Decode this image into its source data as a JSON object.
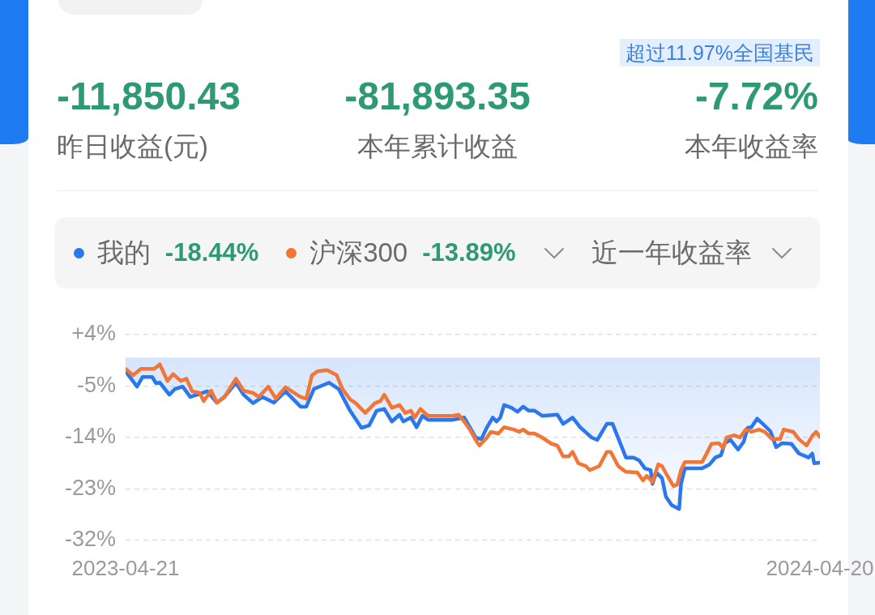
{
  "chart_data": [
    {
      "type": "other",
      "annotations": [
        "超过11.97%全国基民",
        "-11,850.43",
        "昨日收益(元)",
        "-81,893.35",
        "本年累计收益",
        "-7.72%",
        "本年收益率"
      ]
    },
    {
      "type": "line",
      "legend": "top",
      "grid": "y",
      "marker": "none",
      "annotations": [
        "-18.44%",
        "-13.89%",
        "近一年收益率"
      ],
      "xlim": [
        "2023-04-21",
        "2024-04-20"
      ],
      "xticks": [
        "2023-04-21",
        "2024-04-20"
      ],
      "ylim": [
        -32,
        4
      ],
      "yticks": [
        {
          "value": 4,
          "label": "+4%"
        },
        {
          "value": -5,
          "label": "-5%"
        },
        {
          "value": -14,
          "label": "-14%"
        },
        {
          "value": -23,
          "label": "-23%"
        },
        {
          "value": -32,
          "label": "-32%"
        }
      ],
      "series": [
        {
          "name": "我的",
          "type": "area",
          "color": "#2b78ee",
          "x": [
            "2023-04-21",
            "2023-04-27",
            "2023-04-30",
            "2023-05-05",
            "2023-05-07",
            "2023-05-09",
            "2023-05-14",
            "2023-05-17",
            "2023-05-21",
            "2023-05-25",
            "2023-06-03",
            "2023-06-08",
            "2023-06-12",
            "2023-06-18",
            "2023-06-22",
            "2023-06-27",
            "2023-07-02",
            "2023-07-08",
            "2023-07-14",
            "2023-07-22",
            "2023-07-25",
            "2023-07-29",
            "2023-08-06",
            "2023-08-11",
            "2023-08-17",
            "2023-08-23",
            "2023-08-27",
            "2023-08-31",
            "2023-09-04",
            "2023-09-08",
            "2023-09-12",
            "2023-09-14",
            "2023-09-18",
            "2023-09-21",
            "2023-09-24",
            "2023-09-27",
            "2023-10-10",
            "2023-10-16",
            "2023-10-19",
            "2023-10-22",
            "2023-10-25",
            "2023-10-28",
            "2023-10-31",
            "2023-11-02",
            "2023-11-04",
            "2023-11-06",
            "2023-11-10",
            "2023-11-13",
            "2023-11-16",
            "2023-11-19",
            "2023-11-22",
            "2023-11-26",
            "2023-12-04",
            "2023-12-07",
            "2023-12-12",
            "2023-12-16",
            "2023-12-22",
            "2023-12-25",
            "2023-12-30",
            "2024-01-02",
            "2024-01-07",
            "2024-01-09",
            "2024-01-13",
            "2024-01-16",
            "2024-01-19",
            "2024-01-22",
            "2024-01-23",
            "2024-01-25",
            "2024-01-28",
            "2024-01-30",
            "2024-02-02",
            "2024-02-06",
            "2024-02-07",
            "2024-02-09",
            "2024-02-18",
            "2024-02-22",
            "2024-02-25",
            "2024-02-28",
            "2024-03-01",
            "2024-03-04",
            "2024-03-08",
            "2024-03-11",
            "2024-03-13",
            "2024-03-15",
            "2024-03-18",
            "2024-03-21",
            "2024-03-25",
            "2024-03-28",
            "2024-03-31",
            "2024-04-05",
            "2024-04-09",
            "2024-04-14",
            "2024-04-16",
            "2024-04-17",
            "2024-04-20"
          ],
          "values": [
            -2.4,
            -5.1,
            -3.4,
            -3.4,
            -4.5,
            -4.4,
            -6.5,
            -5.5,
            -5.1,
            -6.9,
            -5.9,
            -7.9,
            -6.9,
            -4.4,
            -6.5,
            -8.0,
            -6.9,
            -7.9,
            -5.9,
            -8.6,
            -8.6,
            -5.5,
            -4.4,
            -5.5,
            -9.3,
            -12.3,
            -11.9,
            -9.3,
            -9.0,
            -11.2,
            -10.0,
            -11.2,
            -10.5,
            -12.2,
            -10.2,
            -10.9,
            -10.9,
            -10.5,
            -12.2,
            -14.0,
            -14.3,
            -12.2,
            -10.5,
            -11.2,
            -10.5,
            -8.3,
            -8.8,
            -9.5,
            -8.6,
            -9.3,
            -9.3,
            -10.2,
            -10.0,
            -11.6,
            -10.5,
            -12.2,
            -14.0,
            -14.4,
            -11.6,
            -11.6,
            -15.8,
            -17.5,
            -17.5,
            -18.0,
            -19.4,
            -19.7,
            -22.1,
            -20.1,
            -21.1,
            -24.3,
            -25.8,
            -26.5,
            -22.1,
            -19.4,
            -19.4,
            -18.7,
            -17.5,
            -17.1,
            -15.0,
            -14.4,
            -16.1,
            -14.7,
            -12.3,
            -12.2,
            -10.7,
            -11.6,
            -12.9,
            -15.7,
            -15.0,
            -15.1,
            -16.8,
            -17.5,
            -16.8,
            -18.5,
            -18.4
          ]
        },
        {
          "name": "沪深300",
          "color": "#f27637",
          "x": [
            "2023-04-21",
            "2023-04-25",
            "2023-04-29",
            "2023-05-06",
            "2023-05-09",
            "2023-05-13",
            "2023-05-16",
            "2023-05-20",
            "2023-05-23",
            "2023-05-26",
            "2023-05-30",
            "2023-06-01",
            "2023-06-05",
            "2023-06-08",
            "2023-06-12",
            "2023-06-18",
            "2023-06-22",
            "2023-06-27",
            "2023-06-30",
            "2023-07-05",
            "2023-07-09",
            "2023-07-14",
            "2023-07-22",
            "2023-07-25",
            "2023-07-28",
            "2023-07-31",
            "2023-08-05",
            "2023-08-10",
            "2023-08-13",
            "2023-08-17",
            "2023-08-20",
            "2023-08-25",
            "2023-08-30",
            "2023-09-02",
            "2023-09-04",
            "2023-09-08",
            "2023-09-12",
            "2023-09-15",
            "2023-09-18",
            "2023-09-20",
            "2023-09-23",
            "2023-09-27",
            "2023-10-10",
            "2023-10-13",
            "2023-10-16",
            "2023-10-19",
            "2023-10-22",
            "2023-10-24",
            "2023-10-28",
            "2023-10-30",
            "2023-11-03",
            "2023-11-06",
            "2023-11-11",
            "2023-11-14",
            "2023-11-16",
            "2023-11-19",
            "2023-11-22",
            "2023-11-26",
            "2023-12-01",
            "2023-12-04",
            "2023-12-07",
            "2023-12-10",
            "2023-12-12",
            "2023-12-15",
            "2023-12-19",
            "2023-12-21",
            "2023-12-26",
            "2023-12-30",
            "2024-01-01",
            "2024-01-05",
            "2024-01-09",
            "2024-01-15",
            "2024-01-18",
            "2024-01-20",
            "2024-01-23",
            "2024-01-26",
            "2024-01-28",
            "2024-01-31",
            "2024-02-03",
            "2024-02-05",
            "2024-02-07",
            "2024-02-09",
            "2024-02-18",
            "2024-02-20",
            "2024-02-23",
            "2024-02-27",
            "2024-02-29",
            "2024-03-02",
            "2024-03-06",
            "2024-03-09",
            "2024-03-12",
            "2024-03-15",
            "2024-03-19",
            "2024-03-22",
            "2024-03-26",
            "2024-03-30",
            "2024-04-01",
            "2024-04-06",
            "2024-04-09",
            "2024-04-13",
            "2024-04-16",
            "2024-04-18",
            "2024-04-20"
          ],
          "values": [
            -2.0,
            -3.1,
            -2.0,
            -2.0,
            -1.2,
            -4.1,
            -2.9,
            -4.1,
            -3.7,
            -5.9,
            -6.2,
            -7.6,
            -5.8,
            -7.9,
            -6.9,
            -3.7,
            -5.8,
            -6.2,
            -6.9,
            -5.1,
            -7.2,
            -5.2,
            -6.9,
            -7.2,
            -3.1,
            -2.4,
            -2.2,
            -3.1,
            -5.5,
            -7.3,
            -8.0,
            -9.7,
            -8.0,
            -7.6,
            -6.5,
            -8.8,
            -8.3,
            -9.7,
            -9.3,
            -10.5,
            -9.0,
            -10.2,
            -10.2,
            -10.0,
            -11.2,
            -12.6,
            -14.4,
            -15.4,
            -14.0,
            -13.0,
            -13.3,
            -12.2,
            -12.6,
            -13.0,
            -12.6,
            -13.3,
            -13.3,
            -14.0,
            -15.1,
            -15.4,
            -17.3,
            -17.3,
            -16.5,
            -18.5,
            -19.0,
            -19.7,
            -19.0,
            -16.5,
            -16.5,
            -19.0,
            -20.0,
            -20.1,
            -21.5,
            -20.7,
            -21.8,
            -18.7,
            -19.0,
            -20.8,
            -22.5,
            -22.2,
            -19.7,
            -18.3,
            -18.3,
            -17.1,
            -15.1,
            -15.0,
            -15.8,
            -14.0,
            -13.6,
            -14.0,
            -12.6,
            -13.0,
            -12.6,
            -13.0,
            -14.3,
            -14.3,
            -12.6,
            -13.0,
            -14.3,
            -15.4,
            -13.7,
            -13.0,
            -13.9
          ]
        }
      ]
    }
  ]
}
